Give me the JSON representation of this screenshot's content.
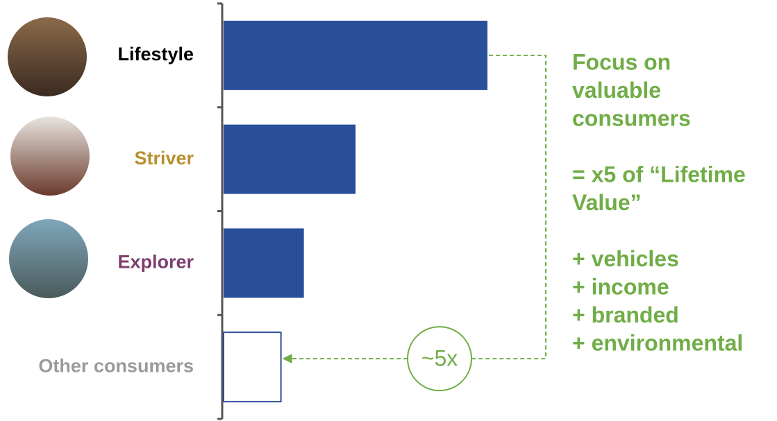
{
  "chart_data": {
    "type": "hbar",
    "categories": [
      "Lifestyle",
      "Striver",
      "Explorer",
      "Other consumers"
    ],
    "category_colors": [
      "#000000",
      "#b8902e",
      "#7b3f6e",
      "#9a9a9a"
    ],
    "values": [
      4.6,
      2.3,
      1.4,
      1.0
    ],
    "color": "#2a4f9a",
    "outlined": [
      false,
      false,
      false,
      true
    ],
    "annotation": "~5x",
    "annotation_color": "#70ad47",
    "side_note": {
      "heading": [
        "Focus on",
        "valuable",
        "consumers"
      ],
      "multiplier": [
        "= x5 of “Lifetime",
        "Value”"
      ],
      "bullets": [
        "+ vehicles",
        "+ income",
        "+ branded",
        "+ environmental"
      ]
    }
  }
}
